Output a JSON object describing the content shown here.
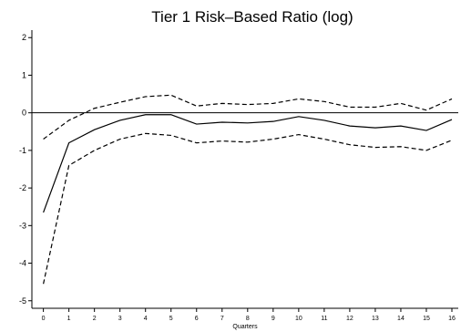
{
  "chart_data": {
    "type": "line",
    "title": "Tier 1 Risk–Based Ratio (log)",
    "xlabel": "Quarters",
    "ylabel": "",
    "x": [
      0,
      1,
      2,
      3,
      4,
      5,
      6,
      7,
      8,
      9,
      10,
      11,
      12,
      13,
      14,
      15,
      16
    ],
    "xlim": [
      0,
      16
    ],
    "ylim": [
      -5,
      2
    ],
    "yticks": [
      -5,
      -4,
      -3,
      -2,
      -1,
      0,
      1,
      2
    ],
    "reference_line": 0,
    "grid": false,
    "legend": "none",
    "series": [
      {
        "role": "estimate",
        "style": "solid",
        "values": [
          -2.65,
          -0.8,
          -0.45,
          -0.2,
          -0.05,
          -0.05,
          -0.3,
          -0.25,
          -0.27,
          -0.23,
          -0.1,
          -0.2,
          -0.35,
          -0.4,
          -0.35,
          -0.47,
          -0.18
        ]
      },
      {
        "role": "upper-band",
        "style": "dashed",
        "values": [
          -0.7,
          -0.2,
          0.12,
          0.28,
          0.43,
          0.47,
          0.18,
          0.25,
          0.22,
          0.25,
          0.37,
          0.3,
          0.15,
          0.15,
          0.25,
          0.07,
          0.37
        ]
      },
      {
        "role": "lower-band",
        "style": "dashed",
        "values": [
          -4.55,
          -1.4,
          -1.0,
          -0.7,
          -0.55,
          -0.6,
          -0.8,
          -0.75,
          -0.78,
          -0.7,
          -0.58,
          -0.7,
          -0.85,
          -0.92,
          -0.9,
          -1.0,
          -0.73
        ]
      }
    ]
  }
}
